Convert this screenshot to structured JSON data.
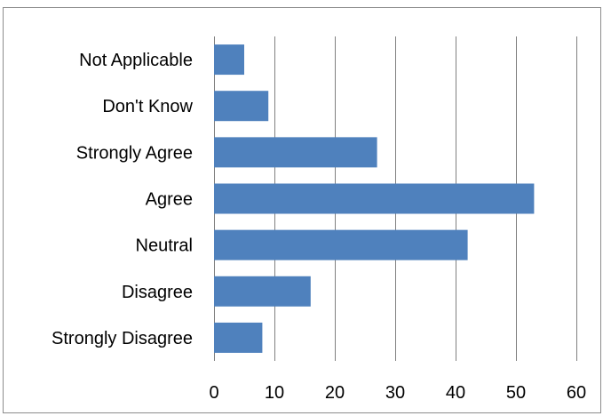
{
  "chart_data": {
    "type": "bar",
    "orientation": "horizontal",
    "title": "",
    "xlabel": "",
    "ylabel": "",
    "categories": [
      "Not Applicable",
      "Don't Know",
      "Strongly Agree",
      "Agree",
      "Neutral",
      "Disagree",
      "Strongly Disagree"
    ],
    "values": [
      5,
      9,
      27,
      53,
      42,
      16,
      8
    ],
    "xlim": [
      0,
      60
    ],
    "xticks": [
      "0",
      "10",
      "20",
      "30",
      "40",
      "50",
      "60"
    ],
    "grid": "vertical",
    "legend": "none",
    "bar_color": "#4f81bd",
    "grid_color": "#808080"
  }
}
